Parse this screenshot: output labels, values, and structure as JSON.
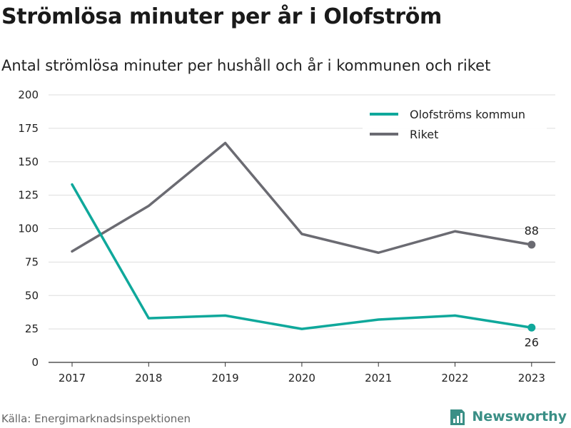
{
  "header": {
    "title": "Strömlösa minuter per år i Olofström",
    "subtitle": "Antal strömlösa minuter per hushåll och år i kommunen och riket"
  },
  "footer": {
    "source": "Källa: Energimarknadsinspektionen",
    "brand": "Newsworthy"
  },
  "colors": {
    "teal": "#0fa89b",
    "gray": "#6b6b72",
    "grid": "#dddddd",
    "brand": "#3a8f86"
  },
  "chart_data": {
    "type": "line",
    "x": [
      "2017",
      "2018",
      "2019",
      "2020",
      "2021",
      "2022",
      "2023"
    ],
    "ylim": [
      0,
      200
    ],
    "yticks": [
      0,
      25,
      50,
      75,
      100,
      125,
      150,
      175,
      200
    ],
    "grid": true,
    "legend_position": "top-right",
    "series": [
      {
        "name": "Olofströms kommun",
        "color": "#0fa89b",
        "values": [
          133,
          33,
          35,
          25,
          32,
          35,
          26
        ],
        "end_label": "26",
        "end_label_position": "below"
      },
      {
        "name": "Riket",
        "color": "#6b6b72",
        "values": [
          83,
          117,
          164,
          96,
          82,
          98,
          88
        ],
        "end_label": "88",
        "end_label_position": "above"
      }
    ]
  }
}
